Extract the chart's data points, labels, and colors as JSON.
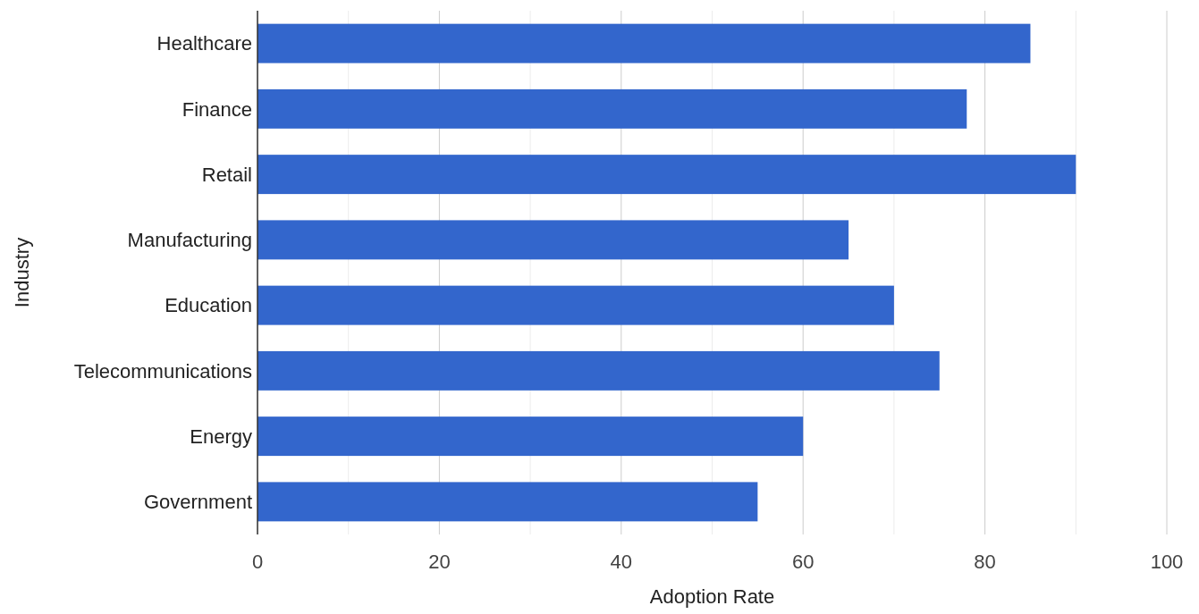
{
  "chart_data": {
    "type": "bar",
    "orientation": "horizontal",
    "xlabel": "Adoption Rate",
    "ylabel": "Industry",
    "categories": [
      "Healthcare",
      "Finance",
      "Retail",
      "Manufacturing",
      "Education",
      "Telecommunications",
      "Energy",
      "Government"
    ],
    "values": [
      85,
      78,
      90,
      65,
      70,
      75,
      60,
      55
    ],
    "color": "#3366cc",
    "xlim": [
      0,
      100
    ],
    "xticks": [
      0,
      {
        "value": 10,
        "label": null
      },
      20,
      {
        "value": 30,
        "label": null
      },
      40,
      {
        "value": 50,
        "label": null
      },
      60,
      {
        "value": 70,
        "label": null
      },
      80,
      {
        "value": 90,
        "label": null
      },
      100
    ],
    "grid": "x"
  }
}
